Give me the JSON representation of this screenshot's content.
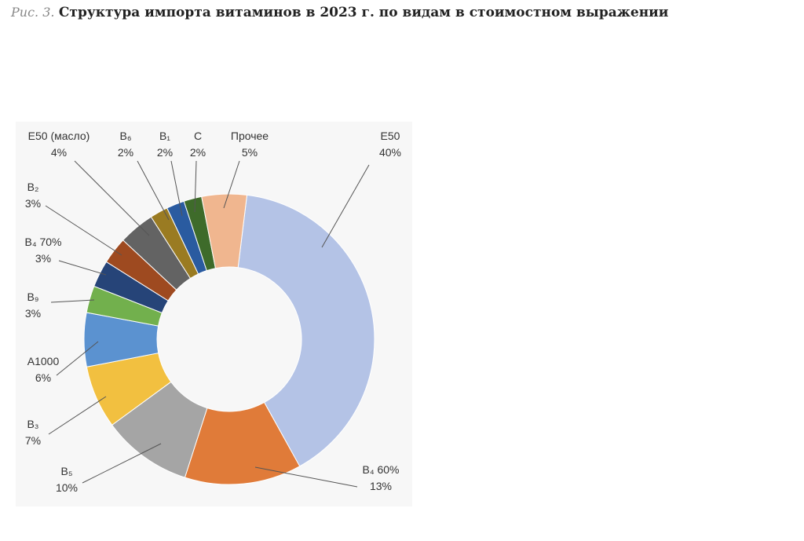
{
  "caption_prefix": "Рис. 3.",
  "chart_data": {
    "type": "donut",
    "title": "Структура импорта витаминов в 2023 г. по видам в стоимостном выражении",
    "categories": [
      "E50",
      "B₄ 60%",
      "B₅",
      "B₃",
      "A1000",
      "B₉",
      "B₄ 70%",
      "B₂",
      "E50 (масло)",
      "B₆",
      "B₁",
      "C",
      "Прочее"
    ],
    "values": [
      40,
      13,
      10,
      7,
      6,
      3,
      3,
      3,
      4,
      2,
      2,
      2,
      5
    ],
    "value_labels": [
      "40%",
      "13%",
      "10%",
      "7%",
      "6%",
      "3%",
      "3%",
      "3%",
      "4%",
      "2%",
      "2%",
      "2%",
      "5%"
    ],
    "colors": [
      "#b4c3e6",
      "#e07b39",
      "#a5a5a5",
      "#f2c040",
      "#5b92d0",
      "#72b04d",
      "#264478",
      "#9e4a20",
      "#636363",
      "#9a7b22",
      "#2a5ba0",
      "#3e6b2a",
      "#f0b68f"
    ]
  }
}
